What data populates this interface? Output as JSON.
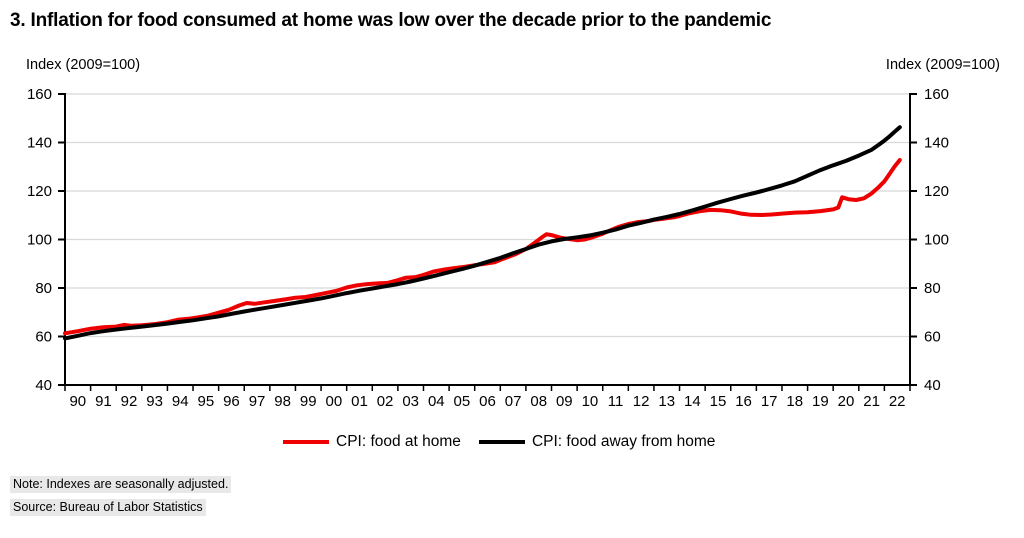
{
  "title": "3. Inflation for food consumed at home was low over the decade prior to the pandemic",
  "notes": {
    "note": "Note: Indexes are seasonally adjusted.",
    "source": "Source: Bureau of Labor Statistics"
  },
  "chart_data": {
    "type": "line",
    "title": "3. Inflation for food consumed at home was low over the decade prior to the pandemic",
    "grid": true,
    "legend_position": "bottom-center",
    "y_axis": {
      "label": "Index (2009=100)",
      "min": 40,
      "max": 160,
      "ticks": [
        40,
        60,
        80,
        100,
        120,
        140,
        160
      ],
      "shown_on": "both sides"
    },
    "x_axis": {
      "start_year": 1990,
      "end_year": 2023,
      "tick_labels": [
        "90",
        "91",
        "92",
        "93",
        "94",
        "95",
        "96",
        "97",
        "98",
        "99",
        "00",
        "01",
        "02",
        "03",
        "04",
        "05",
        "06",
        "07",
        "08",
        "09",
        "10",
        "11",
        "12",
        "13",
        "14",
        "15",
        "16",
        "17",
        "18",
        "19",
        "20",
        "21",
        "22"
      ]
    },
    "series": [
      {
        "name": "CPI: food at home",
        "color": "#ee0000",
        "points": [
          [
            1990.0,
            61.3
          ],
          [
            1990.5,
            62.2
          ],
          [
            1991.0,
            63.2
          ],
          [
            1991.5,
            63.8
          ],
          [
            1992.0,
            64.1
          ],
          [
            1992.3,
            64.8
          ],
          [
            1992.6,
            64.4
          ],
          [
            1993.0,
            64.6
          ],
          [
            1993.5,
            65.1
          ],
          [
            1994.0,
            65.9
          ],
          [
            1994.4,
            66.9
          ],
          [
            1994.8,
            67.3
          ],
          [
            1995.2,
            67.9
          ],
          [
            1995.6,
            68.6
          ],
          [
            1996.0,
            69.8
          ],
          [
            1996.4,
            71.0
          ],
          [
            1996.8,
            72.8
          ],
          [
            1997.1,
            73.8
          ],
          [
            1997.4,
            73.5
          ],
          [
            1997.8,
            74.1
          ],
          [
            1998.2,
            74.7
          ],
          [
            1998.6,
            75.3
          ],
          [
            1999.0,
            76.0
          ],
          [
            1999.4,
            76.3
          ],
          [
            1999.8,
            77.1
          ],
          [
            2000.2,
            78.0
          ],
          [
            2000.6,
            78.8
          ],
          [
            2001.0,
            80.2
          ],
          [
            2001.4,
            81.1
          ],
          [
            2001.8,
            81.6
          ],
          [
            2002.2,
            81.9
          ],
          [
            2002.6,
            82.1
          ],
          [
            2003.0,
            83.2
          ],
          [
            2003.3,
            84.2
          ],
          [
            2003.7,
            84.5
          ],
          [
            2004.0,
            85.4
          ],
          [
            2004.4,
            86.8
          ],
          [
            2004.8,
            87.6
          ],
          [
            2005.2,
            88.2
          ],
          [
            2005.6,
            88.7
          ],
          [
            2006.0,
            89.4
          ],
          [
            2006.4,
            90.0
          ],
          [
            2006.8,
            90.7
          ],
          [
            2007.0,
            91.6
          ],
          [
            2007.3,
            92.8
          ],
          [
            2007.6,
            94.0
          ],
          [
            2008.0,
            96.1
          ],
          [
            2008.3,
            98.3
          ],
          [
            2008.6,
            100.7
          ],
          [
            2008.8,
            102.2
          ],
          [
            2009.0,
            101.8
          ],
          [
            2009.3,
            100.9
          ],
          [
            2009.6,
            100.3
          ],
          [
            2010.0,
            99.7
          ],
          [
            2010.3,
            100.0
          ],
          [
            2010.6,
            100.9
          ],
          [
            2011.0,
            102.4
          ],
          [
            2011.3,
            103.8
          ],
          [
            2011.6,
            105.1
          ],
          [
            2012.0,
            106.4
          ],
          [
            2012.4,
            107.2
          ],
          [
            2012.8,
            107.6
          ],
          [
            2013.0,
            108.1
          ],
          [
            2013.4,
            108.6
          ],
          [
            2013.8,
            109.2
          ],
          [
            2014.0,
            109.7
          ],
          [
            2014.4,
            110.9
          ],
          [
            2014.8,
            111.7
          ],
          [
            2015.2,
            112.2
          ],
          [
            2015.6,
            112.1
          ],
          [
            2016.0,
            111.6
          ],
          [
            2016.4,
            110.7
          ],
          [
            2016.8,
            110.2
          ],
          [
            2017.2,
            110.1
          ],
          [
            2017.6,
            110.3
          ],
          [
            2018.0,
            110.7
          ],
          [
            2018.5,
            111.1
          ],
          [
            2019.0,
            111.2
          ],
          [
            2019.5,
            111.7
          ],
          [
            2020.0,
            112.4
          ],
          [
            2020.2,
            113.2
          ],
          [
            2020.35,
            117.4
          ],
          [
            2020.6,
            116.6
          ],
          [
            2020.9,
            116.3
          ],
          [
            2021.2,
            117.0
          ],
          [
            2021.5,
            119.0
          ],
          [
            2021.75,
            121.3
          ],
          [
            2022.0,
            124.0
          ],
          [
            2022.2,
            127.0
          ],
          [
            2022.4,
            130.1
          ],
          [
            2022.6,
            132.8
          ]
        ]
      },
      {
        "name": "CPI: food away from home",
        "color": "#000000",
        "points": [
          [
            1990.0,
            59.2
          ],
          [
            1990.5,
            60.3
          ],
          [
            1991.0,
            61.4
          ],
          [
            1991.5,
            62.2
          ],
          [
            1992.0,
            62.9
          ],
          [
            1992.5,
            63.5
          ],
          [
            1993.0,
            64.1
          ],
          [
            1993.5,
            64.7
          ],
          [
            1994.0,
            65.3
          ],
          [
            1994.5,
            66.0
          ],
          [
            1995.0,
            66.7
          ],
          [
            1995.5,
            67.5
          ],
          [
            1996.0,
            68.3
          ],
          [
            1996.5,
            69.3
          ],
          [
            1997.0,
            70.3
          ],
          [
            1997.5,
            71.2
          ],
          [
            1998.0,
            72.1
          ],
          [
            1998.5,
            73.0
          ],
          [
            1999.0,
            73.9
          ],
          [
            1999.5,
            74.8
          ],
          [
            2000.0,
            75.7
          ],
          [
            2000.5,
            76.8
          ],
          [
            2001.0,
            77.9
          ],
          [
            2001.5,
            78.9
          ],
          [
            2002.0,
            79.8
          ],
          [
            2002.5,
            80.7
          ],
          [
            2003.0,
            81.6
          ],
          [
            2003.5,
            82.7
          ],
          [
            2004.0,
            83.9
          ],
          [
            2004.5,
            85.2
          ],
          [
            2005.0,
            86.5
          ],
          [
            2005.5,
            87.8
          ],
          [
            2006.0,
            89.2
          ],
          [
            2006.5,
            90.8
          ],
          [
            2007.0,
            92.4
          ],
          [
            2007.5,
            94.3
          ],
          [
            2008.0,
            96.1
          ],
          [
            2008.5,
            97.9
          ],
          [
            2009.0,
            99.2
          ],
          [
            2009.5,
            100.2
          ],
          [
            2010.0,
            100.9
          ],
          [
            2010.5,
            101.7
          ],
          [
            2011.0,
            102.8
          ],
          [
            2011.5,
            104.1
          ],
          [
            2012.0,
            105.7
          ],
          [
            2012.5,
            106.9
          ],
          [
            2013.0,
            108.2
          ],
          [
            2013.5,
            109.3
          ],
          [
            2014.0,
            110.5
          ],
          [
            2014.5,
            112.0
          ],
          [
            2015.0,
            113.6
          ],
          [
            2015.5,
            115.2
          ],
          [
            2016.0,
            116.7
          ],
          [
            2016.5,
            118.1
          ],
          [
            2017.0,
            119.4
          ],
          [
            2017.5,
            120.8
          ],
          [
            2018.0,
            122.3
          ],
          [
            2018.5,
            124.0
          ],
          [
            2019.0,
            126.3
          ],
          [
            2019.5,
            128.6
          ],
          [
            2020.0,
            130.6
          ],
          [
            2020.5,
            132.4
          ],
          [
            2021.0,
            134.6
          ],
          [
            2021.5,
            137.0
          ],
          [
            2021.8,
            139.2
          ],
          [
            2022.0,
            140.8
          ],
          [
            2022.2,
            142.5
          ],
          [
            2022.4,
            144.4
          ],
          [
            2022.6,
            146.3
          ]
        ]
      }
    ]
  }
}
